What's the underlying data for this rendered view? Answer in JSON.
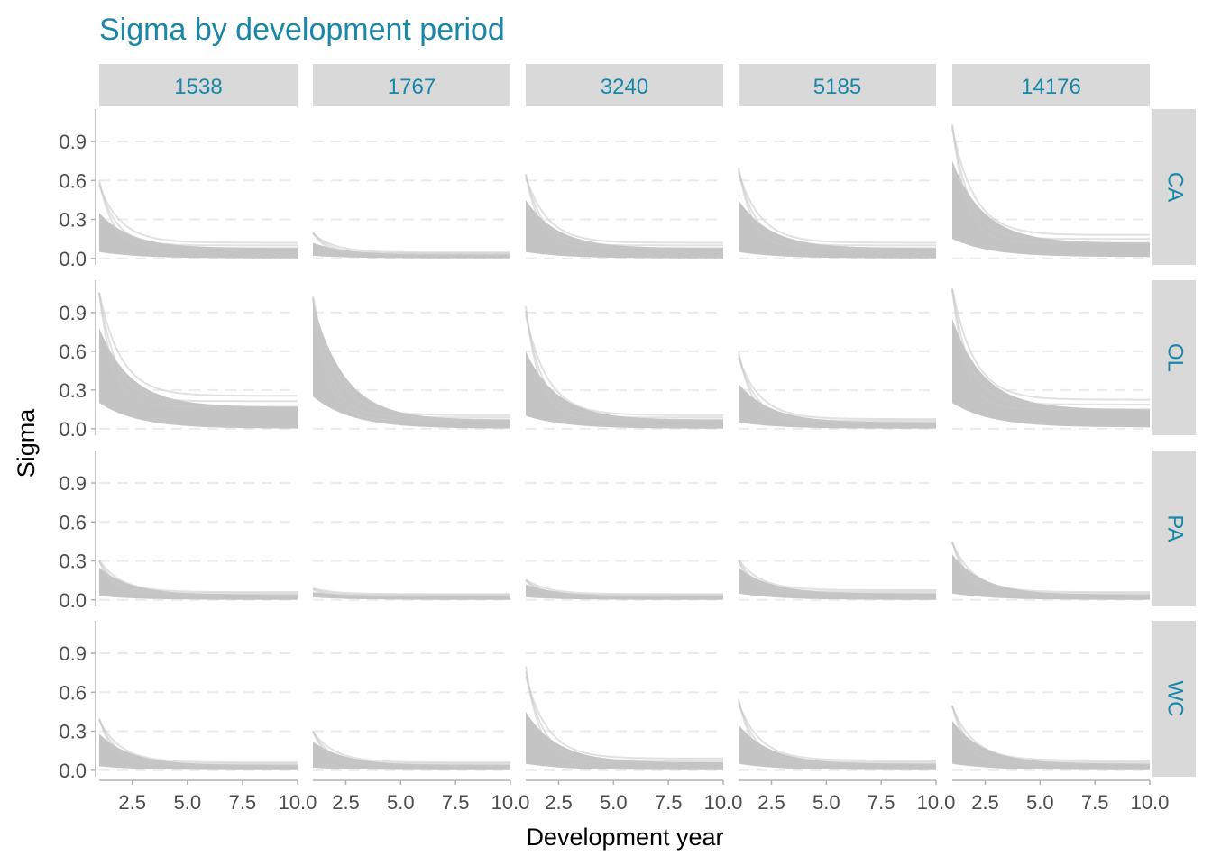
{
  "chart_data": {
    "type": "line",
    "title": "Sigma by development period",
    "xlabel": "Development year",
    "ylabel": "Sigma",
    "xlim": [
      1,
      10
    ],
    "ylim": [
      -0.05,
      1.15
    ],
    "x_ticks": [
      2.5,
      5.0,
      7.5,
      10.0
    ],
    "x_tick_labels": [
      "2.5",
      "5.0",
      "7.5",
      "10.0"
    ],
    "y_ticks": [
      0.0,
      0.3,
      0.6,
      0.9
    ],
    "y_tick_labels": [
      "0.0",
      "0.3",
      "0.6",
      "0.9"
    ],
    "grid": "horizontal major, dashed",
    "col_facets": [
      "1538",
      "1767",
      "3240",
      "5185",
      "14176"
    ],
    "row_facets": [
      "CA",
      "OL",
      "PA",
      "WC"
    ],
    "series_color": "#c4c4c4",
    "panels": [
      {
        "row": "CA",
        "col": "1538",
        "start_low": 0.05,
        "start_high": 0.35,
        "end_low": 0.0,
        "end_high": 0.08,
        "peak": 0.6
      },
      {
        "row": "CA",
        "col": "1767",
        "start_low": 0.02,
        "start_high": 0.12,
        "end_low": 0.0,
        "end_high": 0.03,
        "peak": 0.2
      },
      {
        "row": "CA",
        "col": "3240",
        "start_low": 0.05,
        "start_high": 0.45,
        "end_low": 0.0,
        "end_high": 0.08,
        "peak": 0.65
      },
      {
        "row": "CA",
        "col": "5185",
        "start_low": 0.05,
        "start_high": 0.45,
        "end_low": 0.0,
        "end_high": 0.08,
        "peak": 0.7
      },
      {
        "row": "CA",
        "col": "14176",
        "start_low": 0.15,
        "start_high": 0.75,
        "end_low": 0.01,
        "end_high": 0.12,
        "peak": 1.03
      },
      {
        "row": "OL",
        "col": "1538",
        "start_low": 0.2,
        "start_high": 0.78,
        "end_low": 0.0,
        "end_high": 0.17,
        "peak": 1.05
      },
      {
        "row": "OL",
        "col": "1767",
        "start_low": 0.25,
        "start_high": 0.98,
        "end_low": 0.0,
        "end_high": 0.07,
        "peak": 1.0
      },
      {
        "row": "OL",
        "col": "3240",
        "start_low": 0.1,
        "start_high": 0.6,
        "end_low": 0.0,
        "end_high": 0.07,
        "peak": 0.95
      },
      {
        "row": "OL",
        "col": "5185",
        "start_low": 0.05,
        "start_high": 0.35,
        "end_low": 0.0,
        "end_high": 0.05,
        "peak": 0.6
      },
      {
        "row": "OL",
        "col": "14176",
        "start_low": 0.2,
        "start_high": 0.85,
        "end_low": 0.01,
        "end_high": 0.15,
        "peak": 1.08
      },
      {
        "row": "PA",
        "col": "1538",
        "start_low": 0.03,
        "start_high": 0.25,
        "end_low": 0.0,
        "end_high": 0.04,
        "peak": 0.3
      },
      {
        "row": "PA",
        "col": "1767",
        "start_low": 0.02,
        "start_high": 0.06,
        "end_low": 0.0,
        "end_high": 0.03,
        "peak": 0.08
      },
      {
        "row": "PA",
        "col": "3240",
        "start_low": 0.02,
        "start_high": 0.12,
        "end_low": 0.0,
        "end_high": 0.03,
        "peak": 0.15
      },
      {
        "row": "PA",
        "col": "5185",
        "start_low": 0.05,
        "start_high": 0.25,
        "end_low": 0.0,
        "end_high": 0.05,
        "peak": 0.3
      },
      {
        "row": "PA",
        "col": "14176",
        "start_low": 0.05,
        "start_high": 0.35,
        "end_low": 0.0,
        "end_high": 0.04,
        "peak": 0.45
      },
      {
        "row": "WC",
        "col": "1538",
        "start_low": 0.03,
        "start_high": 0.28,
        "end_low": 0.0,
        "end_high": 0.04,
        "peak": 0.4
      },
      {
        "row": "WC",
        "col": "1767",
        "start_low": 0.02,
        "start_high": 0.22,
        "end_low": 0.0,
        "end_high": 0.04,
        "peak": 0.3
      },
      {
        "row": "WC",
        "col": "3240",
        "start_low": 0.05,
        "start_high": 0.45,
        "end_low": 0.0,
        "end_high": 0.06,
        "peak": 0.8
      },
      {
        "row": "WC",
        "col": "5185",
        "start_low": 0.05,
        "start_high": 0.35,
        "end_low": 0.0,
        "end_high": 0.05,
        "peak": 0.55
      },
      {
        "row": "WC",
        "col": "14176",
        "start_low": 0.05,
        "start_high": 0.38,
        "end_low": 0.0,
        "end_high": 0.05,
        "peak": 0.5
      }
    ]
  }
}
